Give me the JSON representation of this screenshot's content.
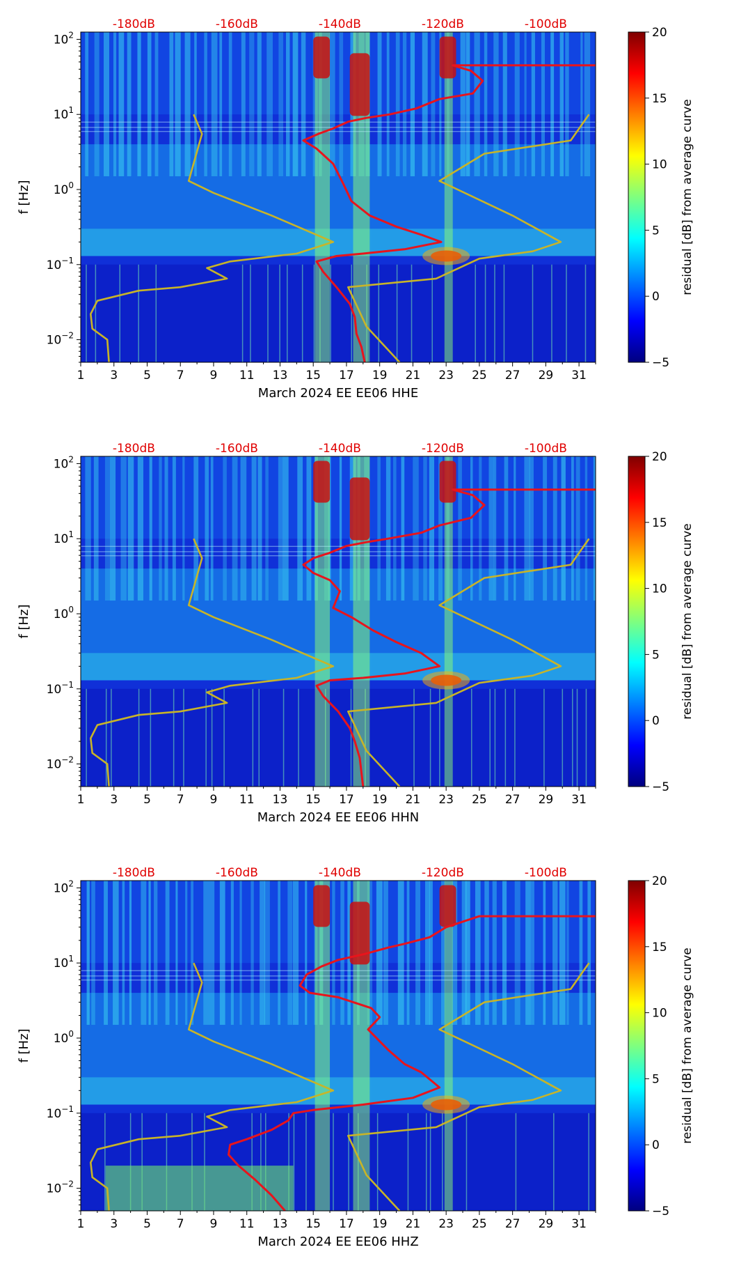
{
  "colorbar_stops": [
    "#00007f",
    "#0000ff",
    "#007fff",
    "#00ffff",
    "#7fff7f",
    "#ffff00",
    "#ff7f00",
    "#ff0000",
    "#7f0000"
  ],
  "curve_colors": {
    "level": "#e8141c",
    "reference": "#c8b428"
  },
  "chart_data": [
    {
      "type": "heatmap",
      "title": "",
      "xlabel": "March 2024 EE EE06  HHE",
      "ylabel": "f [Hz]",
      "x_ticks": [
        "1",
        "3",
        "5",
        "7",
        "9",
        "11",
        "13",
        "15",
        "17",
        "19",
        "21",
        "23",
        "25",
        "27",
        "29",
        "31"
      ],
      "xlim": [
        1,
        32
      ],
      "y_scale": "log",
      "ylim": [
        0.005,
        125
      ],
      "y_tick_labels": [
        {
          "value": 0.01,
          "base": "10",
          "exp": "−2"
        },
        {
          "value": 0.1,
          "base": "10",
          "exp": "−1"
        },
        {
          "value": 1,
          "base": "10",
          "exp": "0"
        },
        {
          "value": 10,
          "base": "10",
          "exp": "1"
        },
        {
          "value": 100,
          "base": "10",
          "exp": "2"
        }
      ],
      "top_axis_labels": [
        "-180dB",
        "-160dB",
        "-140dB",
        "-120dB",
        "-100dB"
      ],
      "top_axis_day_positions": [
        4.2,
        10.4,
        16.6,
        22.8,
        29.0
      ],
      "colorbar": {
        "label": "residual [dB] from average curve",
        "range": [
          -5,
          20
        ],
        "ticks": [
          "20",
          "15",
          "10",
          "5",
          "0",
          "−5"
        ],
        "tick_values": [
          20,
          15,
          10,
          5,
          0,
          -5
        ]
      },
      "series": [
        {
          "name": "median level",
          "x_days": [
            23.4,
            24.5,
            25.2,
            24.6,
            22.6,
            21.2,
            19.6,
            18.2,
            17.1,
            16.2,
            15.3,
            14.4,
            15.2,
            16.2,
            16.8,
            17.3,
            18.4,
            20.0,
            21.5,
            22.7,
            20.5,
            18.0,
            16.4,
            15.2,
            15.6,
            16.4,
            17.2,
            17.5,
            17.6,
            17.9,
            18.1
          ],
          "f_hz": [
            45,
            38,
            28,
            19,
            16,
            12,
            10,
            9,
            8,
            6.5,
            5.5,
            4.5,
            3.5,
            2.2,
            1.2,
            0.7,
            0.45,
            0.32,
            0.25,
            0.2,
            0.16,
            0.14,
            0.13,
            0.11,
            0.08,
            0.05,
            0.03,
            0.02,
            0.012,
            0.008,
            0.005
          ],
          "top_right_to_day": 32
        },
        {
          "name": "reference curve",
          "x_days": [
            7.8,
            8.3,
            7.5,
            9.0,
            12.5,
            16.2,
            14.0,
            10.0,
            8.6,
            9.8,
            7.0,
            4.5,
            2.0,
            1.6,
            1.7,
            2.6,
            2.7
          ],
          "f_hz": [
            10,
            5.5,
            1.3,
            0.9,
            0.45,
            0.2,
            0.14,
            0.11,
            0.09,
            0.065,
            0.05,
            0.045,
            0.033,
            0.022,
            0.014,
            0.01,
            0.005
          ]
        },
        {
          "name": "reference curve",
          "x_days": [
            31.6,
            30.5,
            25.3,
            22.6,
            27.0,
            29.9,
            28.2,
            25.0,
            22.4,
            17.1,
            18.2,
            20.2
          ],
          "f_hz": [
            10,
            4.5,
            3.0,
            1.3,
            0.45,
            0.2,
            0.15,
            0.12,
            0.065,
            0.05,
            0.015,
            0.005
          ]
        }
      ]
    },
    {
      "type": "heatmap",
      "title": "",
      "xlabel": "March 2024 EE EE06  HHN",
      "ylabel": "f [Hz]",
      "x_ticks": [
        "1",
        "3",
        "5",
        "7",
        "9",
        "11",
        "13",
        "15",
        "17",
        "19",
        "21",
        "23",
        "25",
        "27",
        "29",
        "31"
      ],
      "xlim": [
        1,
        32
      ],
      "y_scale": "log",
      "ylim": [
        0.005,
        125
      ],
      "y_tick_labels": [
        {
          "value": 0.01,
          "base": "10",
          "exp": "−2"
        },
        {
          "value": 0.1,
          "base": "10",
          "exp": "−1"
        },
        {
          "value": 1,
          "base": "10",
          "exp": "0"
        },
        {
          "value": 10,
          "base": "10",
          "exp": "1"
        },
        {
          "value": 100,
          "base": "10",
          "exp": "2"
        }
      ],
      "top_axis_labels": [
        "-180dB",
        "-160dB",
        "-140dB",
        "-120dB",
        "-100dB"
      ],
      "top_axis_day_positions": [
        4.2,
        10.4,
        16.6,
        22.8,
        29.0
      ],
      "colorbar": {
        "label": "residual [dB] from average curve",
        "range": [
          -5,
          20
        ],
        "ticks": [
          "20",
          "15",
          "10",
          "5",
          "0",
          "−5"
        ],
        "tick_values": [
          20,
          15,
          10,
          5,
          0,
          -5
        ]
      },
      "series": [
        {
          "name": "median level",
          "x_days": [
            23.4,
            24.6,
            25.3,
            24.5,
            22.6,
            21.5,
            19.5,
            18.2,
            17.0,
            16.0,
            15.0,
            14.4,
            15.0,
            16.0,
            16.6,
            16.2,
            17.3,
            18.6,
            20.0,
            21.5,
            22.6,
            20.5,
            18.0,
            16.0,
            15.2,
            15.6,
            16.5,
            17.2,
            17.5,
            17.8,
            18.0
          ],
          "f_hz": [
            45,
            38,
            28,
            19,
            15,
            12,
            10,
            9,
            8,
            6.5,
            5.5,
            4.5,
            3.5,
            2.8,
            2.0,
            1.2,
            0.9,
            0.6,
            0.42,
            0.3,
            0.2,
            0.16,
            0.14,
            0.13,
            0.11,
            0.08,
            0.05,
            0.03,
            0.02,
            0.012,
            0.005
          ],
          "top_right_to_day": 32
        },
        {
          "name": "reference curve",
          "x_days": [
            7.8,
            8.3,
            7.5,
            9.0,
            12.5,
            16.2,
            14.0,
            10.0,
            8.6,
            9.8,
            7.0,
            4.5,
            2.0,
            1.6,
            1.7,
            2.6,
            2.7
          ],
          "f_hz": [
            10,
            5.5,
            1.3,
            0.9,
            0.45,
            0.2,
            0.14,
            0.11,
            0.09,
            0.065,
            0.05,
            0.045,
            0.033,
            0.022,
            0.014,
            0.01,
            0.005
          ]
        },
        {
          "name": "reference curve",
          "x_days": [
            31.6,
            30.5,
            25.3,
            22.6,
            27.0,
            29.9,
            28.2,
            25.0,
            22.4,
            17.1,
            18.2,
            20.2
          ],
          "f_hz": [
            10,
            4.5,
            3.0,
            1.3,
            0.45,
            0.2,
            0.15,
            0.12,
            0.065,
            0.05,
            0.015,
            0.005
          ]
        }
      ]
    },
    {
      "type": "heatmap",
      "title": "",
      "xlabel": "March 2024 EE EE06  HHZ",
      "ylabel": "f [Hz]",
      "x_ticks": [
        "1",
        "3",
        "5",
        "7",
        "9",
        "11",
        "13",
        "15",
        "17",
        "19",
        "21",
        "23",
        "25",
        "27",
        "29",
        "31"
      ],
      "xlim": [
        1,
        32
      ],
      "y_scale": "log",
      "ylim": [
        0.005,
        125
      ],
      "y_tick_labels": [
        {
          "value": 0.01,
          "base": "10",
          "exp": "−2"
        },
        {
          "value": 0.1,
          "base": "10",
          "exp": "−1"
        },
        {
          "value": 1,
          "base": "10",
          "exp": "0"
        },
        {
          "value": 10,
          "base": "10",
          "exp": "1"
        },
        {
          "value": 100,
          "base": "10",
          "exp": "2"
        }
      ],
      "top_axis_labels": [
        "-180dB",
        "-160dB",
        "-140dB",
        "-120dB",
        "-100dB"
      ],
      "top_axis_day_positions": [
        4.2,
        10.4,
        16.6,
        22.8,
        29.0
      ],
      "colorbar": {
        "label": "residual [dB] from average curve",
        "range": [
          -5,
          20
        ],
        "ticks": [
          "20",
          "15",
          "10",
          "5",
          "0",
          "−5"
        ],
        "tick_values": [
          20,
          15,
          10,
          5,
          0,
          -5
        ]
      },
      "series": [
        {
          "name": "median level",
          "x_days": [
            25.0,
            23.0,
            22.0,
            20.5,
            19.5,
            18.0,
            16.5,
            15.5,
            14.6,
            14.2,
            14.8,
            16.5,
            18.5,
            19.0,
            18.3,
            19.5,
            20.5,
            21.5,
            22.6,
            21.0,
            18.0,
            15.0,
            13.8,
            13.5,
            12.5,
            11.0,
            10.0,
            9.9,
            10.5,
            11.5,
            12.5,
            13.3
          ],
          "f_hz": [
            42,
            30,
            22,
            18,
            16,
            13,
            11,
            9,
            7,
            5,
            4,
            3.5,
            2.5,
            1.9,
            1.3,
            0.7,
            0.45,
            0.35,
            0.22,
            0.16,
            0.13,
            0.11,
            0.1,
            0.08,
            0.06,
            0.045,
            0.038,
            0.028,
            0.02,
            0.013,
            0.008,
            0.005
          ],
          "top_right_to_day": 32
        },
        {
          "name": "reference curve",
          "x_days": [
            7.8,
            8.3,
            7.5,
            9.0,
            12.5,
            16.2,
            14.0,
            10.0,
            8.6,
            9.8,
            7.0,
            4.5,
            2.0,
            1.6,
            1.7,
            2.6,
            2.7
          ],
          "f_hz": [
            10,
            5.5,
            1.3,
            0.9,
            0.45,
            0.2,
            0.14,
            0.11,
            0.09,
            0.065,
            0.05,
            0.045,
            0.033,
            0.022,
            0.014,
            0.01,
            0.005
          ]
        },
        {
          "name": "reference curve",
          "x_days": [
            31.6,
            30.5,
            25.3,
            22.6,
            27.0,
            29.9,
            28.2,
            25.0,
            22.4,
            17.1,
            18.2,
            20.2
          ],
          "f_hz": [
            10,
            4.5,
            3.0,
            1.3,
            0.45,
            0.2,
            0.15,
            0.12,
            0.065,
            0.05,
            0.015,
            0.005
          ]
        }
      ]
    }
  ]
}
